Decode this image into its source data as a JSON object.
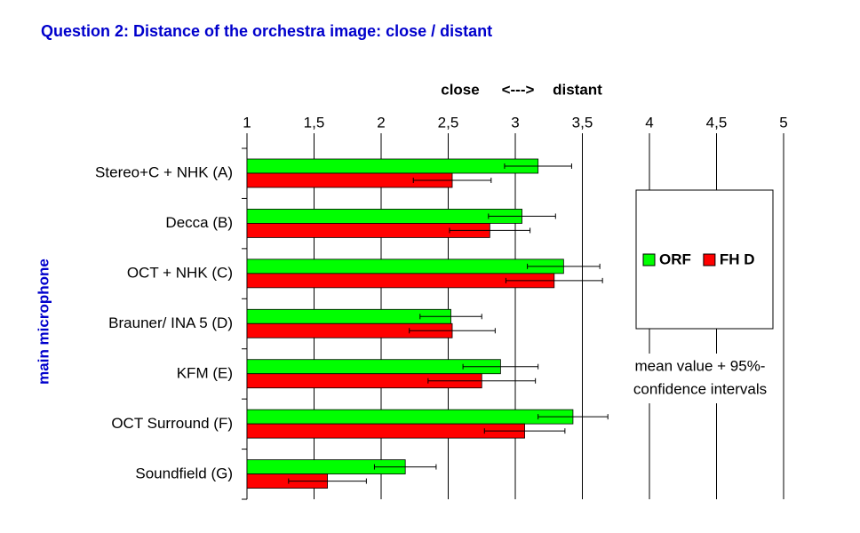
{
  "chart_data": {
    "type": "bar",
    "orientation": "horizontal",
    "title": "Question 2: Distance of the orchestra image: close / distant",
    "x_label_parts": [
      "close",
      "<--->",
      "distant"
    ],
    "y_label": "main microphone",
    "annotation": [
      "mean value + 95%-",
      "confidence intervals"
    ],
    "categories": [
      "Stereo+C + NHK (A)",
      "Decca (B)",
      "OCT + NHK (C)",
      "Brauner/ INA 5 (D)",
      "KFM (E)",
      "OCT Surround (F)",
      "Soundfield (G)"
    ],
    "series": [
      {
        "name": "ORF",
        "color": "#00ff00",
        "values": [
          3.17,
          3.05,
          3.36,
          2.52,
          2.89,
          3.43,
          2.18
        ],
        "errors": [
          0.25,
          0.25,
          0.27,
          0.23,
          0.28,
          0.26,
          0.23
        ]
      },
      {
        "name": "FH D",
        "color": "#ff0000",
        "values": [
          2.53,
          2.81,
          3.29,
          2.53,
          2.75,
          3.07,
          1.6
        ],
        "errors": [
          0.29,
          0.3,
          0.36,
          0.32,
          0.4,
          0.3,
          0.29
        ]
      }
    ],
    "xlim": [
      1,
      5
    ],
    "xticks": [
      1,
      {
        "value": 1.5,
        "label": "1,5"
      },
      2,
      {
        "value": 2.5,
        "label": "2,5"
      },
      3,
      {
        "value": 3.5,
        "label": "3,5"
      },
      4,
      {
        "value": 4.5,
        "label": "4,5"
      },
      5
    ],
    "grid": true
  }
}
